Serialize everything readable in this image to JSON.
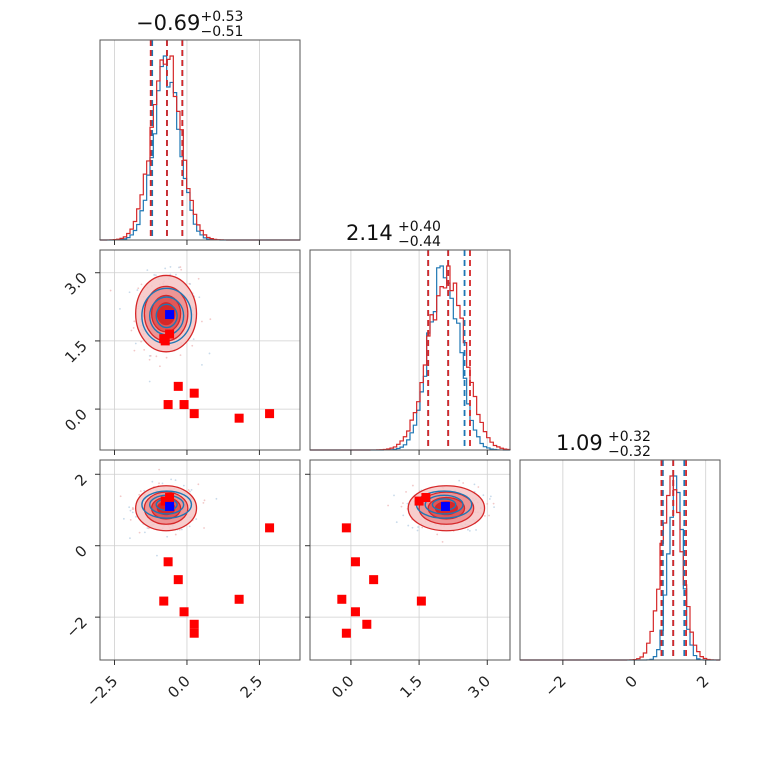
{
  "chart_data": {
    "type": "corner",
    "parameters": [
      {
        "title": {
          "median": "−0.69",
          "plus": "+0.53",
          "minus": "−0.51"
        },
        "range": [
          -3.0,
          3.9
        ],
        "ticks": [
          {
            "v": -2.5,
            "label": "−2.5"
          },
          {
            "v": 0.0,
            "label": "0.0"
          },
          {
            "v": 2.5,
            "label": "2.5"
          }
        ],
        "blue_mu": -0.7,
        "blue_sd": 0.45,
        "red_mu": -0.72,
        "red_sd": 0.5,
        "blue_quantiles": [
          -1.2,
          -0.69,
          -0.16
        ],
        "red_quantiles": [
          -1.25,
          -0.69,
          -0.16
        ]
      },
      {
        "title": {
          "median": "2.14",
          "plus": "+0.40",
          "minus": "−0.44"
        },
        "range": [
          -0.9,
          3.5
        ],
        "ticks": [
          {
            "v": 0.0,
            "label": "0.0"
          },
          {
            "v": 1.5,
            "label": "1.5"
          },
          {
            "v": 3.0,
            "label": "3.0"
          }
        ],
        "blue_mu": 2.05,
        "blue_sd": 0.32,
        "red_mu": 2.1,
        "red_sd": 0.4,
        "blue_quantiles": [
          1.7,
          2.14,
          2.5
        ],
        "red_quantiles": [
          1.7,
          2.14,
          2.62
        ]
      },
      {
        "title": {
          "median": "1.09",
          "plus": "+0.32",
          "minus": "−0.32"
        },
        "range": [
          -3.2,
          2.4
        ],
        "ticks": [
          {
            "v": -2,
            "label": "−2"
          },
          {
            "v": 0,
            "label": "0"
          },
          {
            "v": 2,
            "label": "2"
          }
        ],
        "blue_mu": 1.15,
        "blue_sd": 0.2,
        "red_mu": 1.05,
        "red_sd": 0.3,
        "blue_quantiles": [
          0.8,
          1.09,
          1.4
        ],
        "red_quantiles": [
          0.76,
          1.09,
          1.45
        ]
      }
    ],
    "series": [
      {
        "color": "#1f77b4"
      },
      {
        "color": "#d62728"
      }
    ],
    "truth_point": {
      "values": [
        -0.6,
        2.08,
        1.1
      ],
      "color": "#0000ff"
    },
    "red_markers": {
      "color": "#ff0000",
      "values": [
        [
          -0.6,
          1.65,
          1.35
        ],
        [
          -0.75,
          1.5,
          1.25
        ],
        [
          -0.3,
          0.5,
          -0.95
        ],
        [
          -0.65,
          0.1,
          -0.45
        ],
        [
          -0.1,
          0.1,
          -1.85
        ],
        [
          0.25,
          0.35,
          -2.2
        ],
        [
          0.25,
          -0.1,
          -2.45
        ],
        [
          1.8,
          -0.2,
          -1.5
        ],
        [
          2.85,
          -0.1,
          0.5
        ],
        [
          -0.8,
          1.55,
          -1.55
        ]
      ]
    },
    "grid": true
  }
}
